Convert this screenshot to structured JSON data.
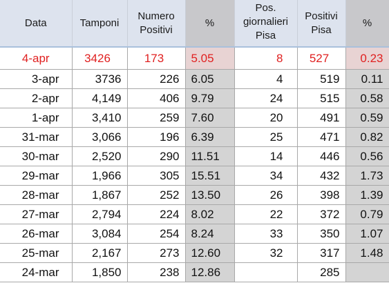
{
  "headers": {
    "data": "Data",
    "tamponi": "Tamponi",
    "numero_positivi": [
      "Numero",
      "Positivi"
    ],
    "pct": "%",
    "pos_giornalieri_pisa": [
      "Pos.",
      "giornalieri",
      "Pisa"
    ],
    "positivi_pisa": [
      "Positivi",
      "Pisa"
    ],
    "pct2": "%"
  },
  "colors": {
    "highlight_red": "#e02020",
    "header_bg": "#dde3ee",
    "shaded_column": "#d4d4d4"
  },
  "rows": [
    {
      "data": "4-apr",
      "tamponi": "3426",
      "positivi": "173",
      "pct": "5.05",
      "pos_pisa": "8",
      "positivi_pisa": "527",
      "pct2": "0.23"
    },
    {
      "data": "3-apr",
      "tamponi": "3736",
      "positivi": "226",
      "pct": "6.05",
      "pos_pisa": "4",
      "positivi_pisa": "519",
      "pct2": "0.11"
    },
    {
      "data": "2-apr",
      "tamponi": "4,149",
      "positivi": "406",
      "pct": "9.79",
      "pos_pisa": "24",
      "positivi_pisa": "515",
      "pct2": "0.58"
    },
    {
      "data": "1-apr",
      "tamponi": "3,410",
      "positivi": "259",
      "pct": "7.60",
      "pos_pisa": "20",
      "positivi_pisa": "491",
      "pct2": "0.59"
    },
    {
      "data": "31-mar",
      "tamponi": "3,066",
      "positivi": "196",
      "pct": "6.39",
      "pos_pisa": "25",
      "positivi_pisa": "471",
      "pct2": "0.82"
    },
    {
      "data": "30-mar",
      "tamponi": "2,520",
      "positivi": "290",
      "pct": "11.51",
      "pos_pisa": "14",
      "positivi_pisa": "446",
      "pct2": "0.56"
    },
    {
      "data": "29-mar",
      "tamponi": "1,966",
      "positivi": "305",
      "pct": "15.51",
      "pos_pisa": "34",
      "positivi_pisa": "432",
      "pct2": "1.73"
    },
    {
      "data": "28-mar",
      "tamponi": "1,867",
      "positivi": "252",
      "pct": "13.50",
      "pos_pisa": "26",
      "positivi_pisa": "398",
      "pct2": "1.39"
    },
    {
      "data": "27-mar",
      "tamponi": "2,794",
      "positivi": "224",
      "pct": "8.02",
      "pos_pisa": "22",
      "positivi_pisa": "372",
      "pct2": "0.79"
    },
    {
      "data": "26-mar",
      "tamponi": "3,084",
      "positivi": "254",
      "pct": "8.24",
      "pos_pisa": "33",
      "positivi_pisa": "350",
      "pct2": "1.07"
    },
    {
      "data": "25-mar",
      "tamponi": "2,167",
      "positivi": "273",
      "pct": "12.60",
      "pos_pisa": "32",
      "positivi_pisa": "317",
      "pct2": "1.48"
    },
    {
      "data": "24-mar",
      "tamponi": "1,850",
      "positivi": "238",
      "pct": "12.86",
      "pos_pisa": "",
      "positivi_pisa": "285",
      "pct2": ""
    }
  ]
}
